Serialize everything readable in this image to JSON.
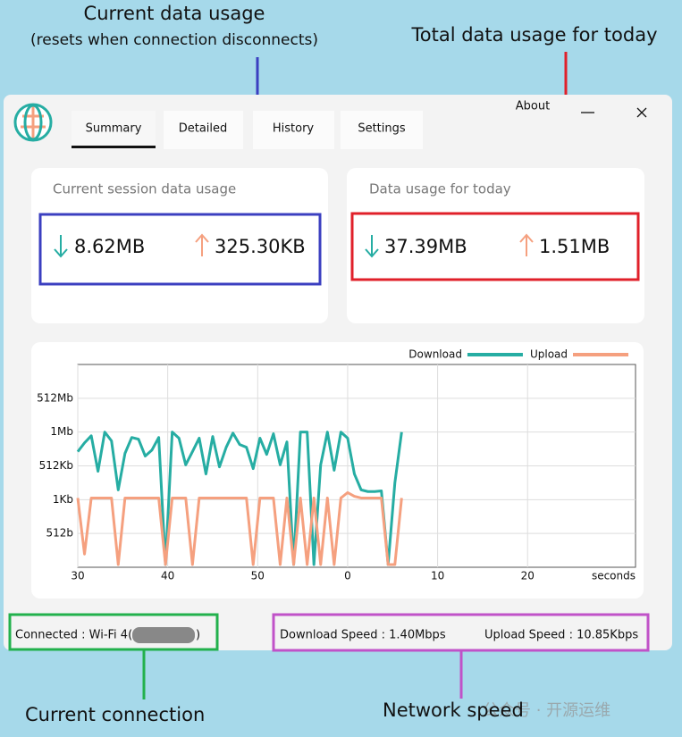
{
  "annotations": {
    "session_title": "Current data usage",
    "session_subtitle": "(resets when connection disconnects)",
    "today": "Total data usage for today",
    "connection": "Current connection",
    "speed": "Network speed",
    "watermark": "公众号 · 开源运维"
  },
  "window": {
    "about": "About",
    "tabs": [
      "Summary",
      "Detailed",
      "History",
      "Settings"
    ]
  },
  "session_card": {
    "title": "Current session data usage",
    "download": "8.62MB",
    "upload": "325.30KB"
  },
  "today_card": {
    "title": "Data usage for today",
    "download": "37.39MB",
    "upload": "1.51MB"
  },
  "chart_data": {
    "type": "line",
    "xlabel": "seconds",
    "x": [
      0,
      0.75,
      1.5,
      2.25,
      3,
      3.75,
      4.5,
      5.25,
      6,
      6.75,
      7.5,
      8.25,
      9,
      9.75,
      10.5,
      11.25,
      12,
      12.75,
      13.5,
      14.25,
      15,
      15.75,
      16.5,
      17.25,
      18,
      18.75,
      19.5,
      20.25,
      21,
      21.75,
      22.5,
      23.25,
      24,
      24.75,
      25.5,
      26.25,
      27,
      27.75,
      28.5,
      29.25,
      30,
      30.75,
      31.5,
      32.25,
      33,
      33.75,
      34.5,
      35.25,
      36
    ],
    "series": [
      {
        "name": "Download",
        "color": "#26ada3",
        "values": [
          3.42,
          3.68,
          3.89,
          2.84,
          4.0,
          3.74,
          2.29,
          3.37,
          3.84,
          3.79,
          3.29,
          3.47,
          3.84,
          0.08,
          4.0,
          3.82,
          3.03,
          3.42,
          3.82,
          2.76,
          3.87,
          2.97,
          3.55,
          3.97,
          3.63,
          3.55,
          2.92,
          3.82,
          3.34,
          3.95,
          3.03,
          3.71,
          0.08,
          4.0,
          4.0,
          0.08,
          3.03,
          4.0,
          2.87,
          4.0,
          3.82,
          2.76,
          2.29,
          2.24,
          2.24,
          2.26,
          0.08,
          2.5,
          4.0
        ]
      },
      {
        "name": "Upload",
        "color": "#f5a07f",
        "values": [
          2.05,
          0.39,
          2.05,
          2.05,
          2.05,
          2.05,
          0.08,
          2.05,
          2.05,
          2.05,
          2.05,
          2.05,
          2.05,
          0.08,
          2.05,
          2.05,
          2.05,
          0.08,
          2.05,
          2.05,
          2.05,
          2.05,
          2.05,
          2.05,
          2.05,
          2.05,
          0.08,
          2.05,
          2.05,
          2.05,
          0.08,
          2.05,
          0.08,
          2.05,
          0.08,
          2.05,
          0.08,
          2.05,
          0.08,
          2.05,
          2.21,
          2.1,
          2.05,
          2.05,
          2.05,
          2.05,
          0.08,
          0.08,
          2.05
        ]
      }
    ],
    "xlim": [
      0,
      62
    ],
    "xticks": [
      {
        "value": 0,
        "label": "30"
      },
      {
        "value": 10,
        "label": "40"
      },
      {
        "value": 20,
        "label": "50"
      },
      {
        "value": 30,
        "label": "0"
      },
      {
        "value": 40,
        "label": "10"
      },
      {
        "value": 50,
        "label": "20"
      }
    ],
    "ylim": [
      0,
      6
    ],
    "yticks": [
      {
        "value": 1,
        "label": "512b"
      },
      {
        "value": 2,
        "label": "1Kb"
      },
      {
        "value": 3,
        "label": "512Kb"
      },
      {
        "value": 4,
        "label": "1Mb"
      },
      {
        "value": 5,
        "label": "512Mb"
      }
    ],
    "grid": true,
    "legend": "top-right"
  },
  "status": {
    "connection": "Connected : Wi-Fi 4(",
    "connection_end": ")",
    "download_speed": "Download Speed : 1.40Mbps",
    "upload_speed": "Upload Speed : 10.85Kbps"
  }
}
